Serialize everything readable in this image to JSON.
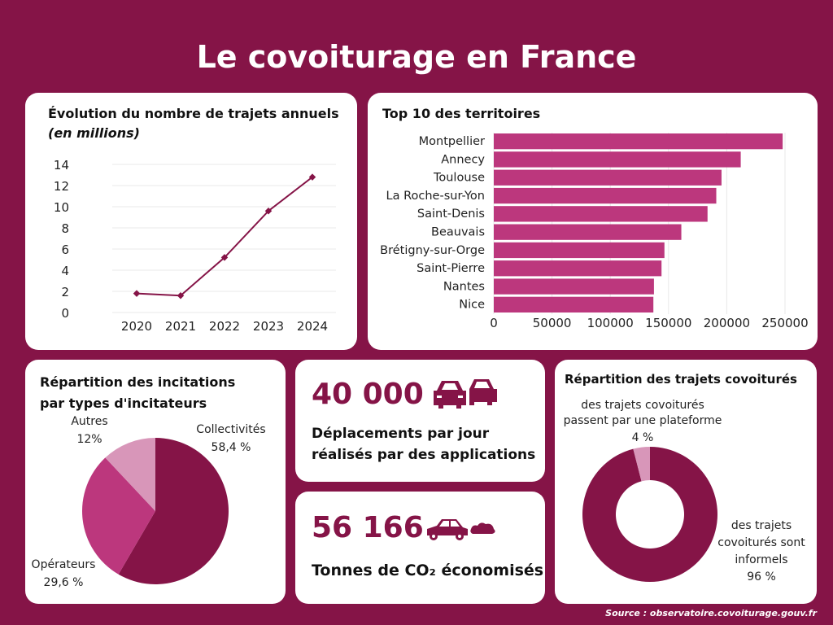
{
  "title": "Le covoiturage en France",
  "colors": {
    "background": "#851447",
    "bar": "#bc377d",
    "pie": [
      "#851447",
      "#bc377d",
      "#d896b9"
    ]
  },
  "chart_data": [
    {
      "type": "line",
      "title": "Évolution du nombre de trajets annuels",
      "subtitle": "(en millions)",
      "categories": [
        "2020",
        "2021",
        "2022",
        "2023",
        "2024"
      ],
      "values": [
        1.8,
        1.6,
        5.2,
        9.6,
        12.8
      ],
      "ylim": [
        0,
        14
      ],
      "yticks": [
        "0",
        "2",
        "4",
        "6",
        "8",
        "10",
        "12",
        "14"
      ],
      "grid": true
    },
    {
      "type": "bar",
      "orientation": "horizontal",
      "title": "Top 10 des territoires",
      "categories": [
        "Montpellier",
        "Annecy",
        "Toulouse",
        "La Roche-sur-Yon",
        "Saint-Denis",
        "Beauvais",
        "Brétigny-sur-Orge",
        "Saint-Pierre",
        "Nantes",
        "Nice"
      ],
      "values": [
        248000,
        212000,
        195500,
        191000,
        183500,
        161000,
        146500,
        144000,
        137500,
        137000
      ],
      "xlim": [
        0,
        250000
      ],
      "xticks": [
        "0",
        "50000",
        "100000",
        "150000",
        "200000",
        "250000"
      ],
      "grid": true
    },
    {
      "type": "pie",
      "title": "Répartition des incitations par types d'incitateurs",
      "slices": [
        {
          "name": "Collectivités",
          "label": "58,4 %",
          "value": 58.4
        },
        {
          "name": "Opérateurs",
          "label": "29,6 %",
          "value": 29.6
        },
        {
          "name": "Autres",
          "label": "12%",
          "value": 12
        }
      ]
    },
    {
      "type": "pie",
      "donut": true,
      "title": "Répartition des trajets covoiturés",
      "slices": [
        {
          "name": "des trajets covoiturés sont informels",
          "label": "96 %",
          "value": 96
        },
        {
          "name": "des trajets covoiturés passent par une plateforme",
          "label": "4 %",
          "value": 4
        }
      ]
    }
  ],
  "stats": [
    {
      "value": "40 000",
      "label1": "Déplacements par jour",
      "label2": "réalisés par des applications",
      "icon": "two-cars-icon"
    },
    {
      "value": "56 166",
      "label": "Tonnes de CO₂ économisés",
      "icon": "car-exhaust-icon"
    }
  ],
  "source": "Source : observatoire.covoiturage.gouv.fr"
}
